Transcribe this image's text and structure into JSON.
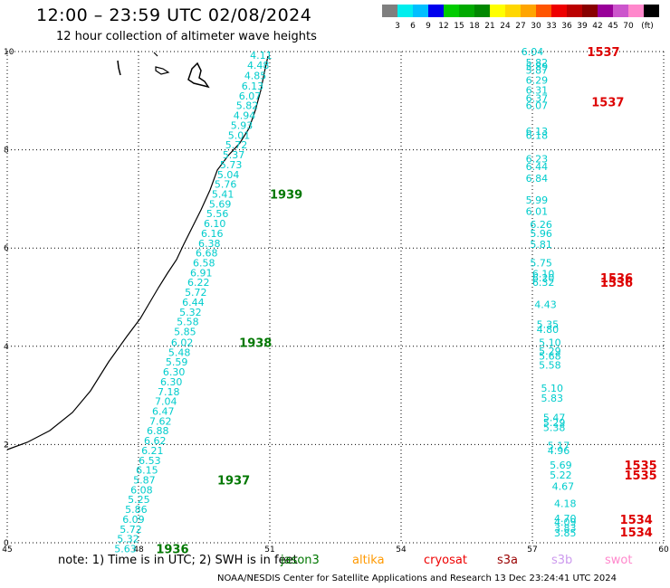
{
  "title": "12:00 – 23:59 UTC 02/08/2024",
  "subtitle": "12 hour collection of altimeter wave heights",
  "colorbar": {
    "unit": "(ft)",
    "labels": [
      "3",
      "6",
      "9",
      "12",
      "15",
      "18",
      "21",
      "24",
      "27",
      "30",
      "33",
      "36",
      "39",
      "42",
      "45",
      "70"
    ],
    "colors": [
      "#7f7f7f",
      "#00eeee",
      "#00bfff",
      "#0000ee",
      "#00cc00",
      "#00aa00",
      "#008800",
      "#ffff00",
      "#ffd700",
      "#ffa500",
      "#ff5500",
      "#ee0000",
      "#bb0000",
      "#880000",
      "#990099",
      "#cc55cc",
      "#ff88cc",
      "#000000"
    ]
  },
  "axes": {
    "x_ticks": [
      "45",
      "48",
      "51",
      "54",
      "57",
      "60"
    ],
    "y_ticks": [
      "0",
      "2",
      "4",
      "6",
      "8",
      "10"
    ],
    "xlim": [
      45,
      60
    ],
    "ylim": [
      0,
      10
    ]
  },
  "track_west": {
    "color": "#00cccc",
    "points": [
      {
        "y": 9.93,
        "v": "4.11"
      },
      {
        "y": 9.72,
        "v": "4.48"
      },
      {
        "y": 9.51,
        "v": "4.85"
      },
      {
        "y": 9.3,
        "v": "6.13"
      },
      {
        "y": 9.1,
        "v": "6.07"
      },
      {
        "y": 8.9,
        "v": "5.82"
      },
      {
        "y": 8.7,
        "v": "4.94"
      },
      {
        "y": 8.5,
        "v": "5.93"
      },
      {
        "y": 8.3,
        "v": "5.01"
      },
      {
        "y": 8.1,
        "v": "5.72"
      },
      {
        "y": 7.9,
        "v": "5.37"
      },
      {
        "y": 7.7,
        "v": "5.73"
      },
      {
        "y": 7.5,
        "v": "5.04"
      },
      {
        "y": 7.3,
        "v": "5.76"
      },
      {
        "y": 7.1,
        "v": "5.41"
      },
      {
        "y": 6.9,
        "v": "5.69"
      },
      {
        "y": 6.7,
        "v": "5.56"
      },
      {
        "y": 6.5,
        "v": "6.10"
      },
      {
        "y": 6.3,
        "v": "6.16"
      },
      {
        "y": 6.1,
        "v": "6.38"
      },
      {
        "y": 5.9,
        "v": "6.68"
      },
      {
        "y": 5.7,
        "v": "6.58"
      },
      {
        "y": 5.5,
        "v": "6.91"
      },
      {
        "y": 5.3,
        "v": "6.22"
      },
      {
        "y": 5.1,
        "v": "5.72"
      },
      {
        "y": 4.9,
        "v": "6.44"
      },
      {
        "y": 4.7,
        "v": "5.32"
      },
      {
        "y": 4.5,
        "v": "5.58"
      },
      {
        "y": 4.3,
        "v": "5.85"
      },
      {
        "y": 4.08,
        "v": "6.02"
      },
      {
        "y": 3.88,
        "v": "5.48"
      },
      {
        "y": 3.68,
        "v": "5.59"
      },
      {
        "y": 3.48,
        "v": "6.30"
      },
      {
        "y": 3.28,
        "v": "6.30"
      },
      {
        "y": 3.08,
        "v": "7.18"
      },
      {
        "y": 2.88,
        "v": "7.04"
      },
      {
        "y": 2.68,
        "v": "6.47"
      },
      {
        "y": 2.48,
        "v": "7.62"
      },
      {
        "y": 2.28,
        "v": "6.88"
      },
      {
        "y": 2.08,
        "v": "6.62"
      },
      {
        "y": 1.88,
        "v": "6.21"
      },
      {
        "y": 1.68,
        "v": "6.53"
      },
      {
        "y": 1.48,
        "v": "6.15"
      },
      {
        "y": 1.28,
        "v": "5.87"
      },
      {
        "y": 1.08,
        "v": "6.08"
      },
      {
        "y": 0.88,
        "v": "5.25"
      },
      {
        "y": 0.68,
        "v": "5.86"
      },
      {
        "y": 0.48,
        "v": "6.09"
      },
      {
        "y": 0.28,
        "v": "5.72"
      },
      {
        "y": 0.08,
        "v": "5.32"
      },
      {
        "y": -0.12,
        "v": "5.63"
      }
    ],
    "time_labels": [
      {
        "y": 7.1,
        "x": 51.0,
        "t": "1939"
      },
      {
        "y": 4.08,
        "x": 50.3,
        "t": "1938"
      },
      {
        "y": 1.28,
        "x": 49.8,
        "t": "1937"
      },
      {
        "y": -0.12,
        "x": 48.4,
        "t": "1936"
      }
    ]
  },
  "track_east": {
    "color": "#00cccc",
    "points": [
      {
        "x": 57.0,
        "y": 10.0,
        "v": "6.04"
      },
      {
        "x": 57.1,
        "y": 9.78,
        "v": "5.82"
      },
      {
        "x": 57.1,
        "y": 9.7,
        "v": "5.89"
      },
      {
        "x": 57.1,
        "y": 9.62,
        "v": "5.87"
      },
      {
        "x": 57.1,
        "y": 9.42,
        "v": "6.29"
      },
      {
        "x": 57.1,
        "y": 9.22,
        "v": "6.31"
      },
      {
        "x": 57.1,
        "y": 9.05,
        "v": "6.37"
      },
      {
        "x": 57.1,
        "y": 8.9,
        "v": "6.07"
      },
      {
        "x": 57.1,
        "y": 8.38,
        "v": "6.13"
      },
      {
        "x": 57.1,
        "y": 8.3,
        "v": "6.18"
      },
      {
        "x": 57.1,
        "y": 7.82,
        "v": "6.23"
      },
      {
        "x": 57.1,
        "y": 7.66,
        "v": "6.44"
      },
      {
        "x": 57.1,
        "y": 7.42,
        "v": "6.84"
      },
      {
        "x": 57.1,
        "y": 6.98,
        "v": "5.99"
      },
      {
        "x": 57.1,
        "y": 6.75,
        "v": "6.01"
      },
      {
        "x": 57.2,
        "y": 6.48,
        "v": "6.26"
      },
      {
        "x": 57.2,
        "y": 6.3,
        "v": "5.96"
      },
      {
        "x": 57.2,
        "y": 6.08,
        "v": "5.81"
      },
      {
        "x": 57.2,
        "y": 5.7,
        "v": "5.75"
      },
      {
        "x": 57.25,
        "y": 5.48,
        "v": "6.10"
      },
      {
        "x": 57.25,
        "y": 5.4,
        "v": "6.20"
      },
      {
        "x": 57.25,
        "y": 5.3,
        "v": "6.32"
      },
      {
        "x": 57.3,
        "y": 4.85,
        "v": "4.43"
      },
      {
        "x": 57.35,
        "y": 4.45,
        "v": "5.35"
      },
      {
        "x": 57.35,
        "y": 4.35,
        "v": "4.80"
      },
      {
        "x": 57.4,
        "y": 4.08,
        "v": "5.10"
      },
      {
        "x": 57.4,
        "y": 3.9,
        "v": "5.29"
      },
      {
        "x": 57.4,
        "y": 3.8,
        "v": "5.68"
      },
      {
        "x": 57.4,
        "y": 3.62,
        "v": "5.58"
      },
      {
        "x": 57.45,
        "y": 3.15,
        "v": "5.10"
      },
      {
        "x": 57.45,
        "y": 2.95,
        "v": "5.83"
      },
      {
        "x": 57.5,
        "y": 2.55,
        "v": "5.47"
      },
      {
        "x": 57.5,
        "y": 2.45,
        "v": "5.29"
      },
      {
        "x": 57.5,
        "y": 2.35,
        "v": "5.38"
      },
      {
        "x": 57.6,
        "y": 1.98,
        "v": "5.17"
      },
      {
        "x": 57.6,
        "y": 1.88,
        "v": "4.96"
      },
      {
        "x": 57.65,
        "y": 1.58,
        "v": "5.69"
      },
      {
        "x": 57.65,
        "y": 1.38,
        "v": "5.22"
      },
      {
        "x": 57.7,
        "y": 1.15,
        "v": "4.67"
      },
      {
        "x": 57.75,
        "y": 0.8,
        "v": "4.18"
      },
      {
        "x": 57.75,
        "y": 0.5,
        "v": "4.70"
      },
      {
        "x": 57.75,
        "y": 0.42,
        "v": "4.09"
      },
      {
        "x": 57.75,
        "y": 0.3,
        "v": "3.83"
      },
      {
        "x": 57.75,
        "y": 0.2,
        "v": "3.85"
      }
    ],
    "time_labels": [
      {
        "x": 58.25,
        "y": 10.0,
        "t": "1537"
      },
      {
        "x": 58.35,
        "y": 8.98,
        "t": "1537"
      },
      {
        "x": 58.55,
        "y": 5.4,
        "t": "1536"
      },
      {
        "x": 58.55,
        "y": 5.3,
        "t": "1536"
      },
      {
        "x": 59.1,
        "y": 1.58,
        "t": "1535"
      },
      {
        "x": 59.1,
        "y": 1.38,
        "t": "1535"
      },
      {
        "x": 59.0,
        "y": 0.48,
        "t": "1534"
      },
      {
        "x": 59.0,
        "y": 0.22,
        "t": "1534"
      }
    ]
  },
  "note": {
    "prefix": "note:  1) Time is in UTC; 2) SWH is in feet",
    "satellites": [
      {
        "name": "jason3",
        "color": "#007700"
      },
      {
        "name": "altika",
        "color": "#ff9900"
      },
      {
        "name": "cryosat",
        "color": "#ee0000"
      },
      {
        "name": "s3a",
        "color": "#990000"
      },
      {
        "name": "s3b",
        "color": "#cc99ee"
      },
      {
        "name": "swot",
        "color": "#ff88cc"
      }
    ]
  },
  "credit": "NOAA/NESDIS Center for Satellite Applications and Research    13 Dec 23:24:41 UTC 2024"
}
